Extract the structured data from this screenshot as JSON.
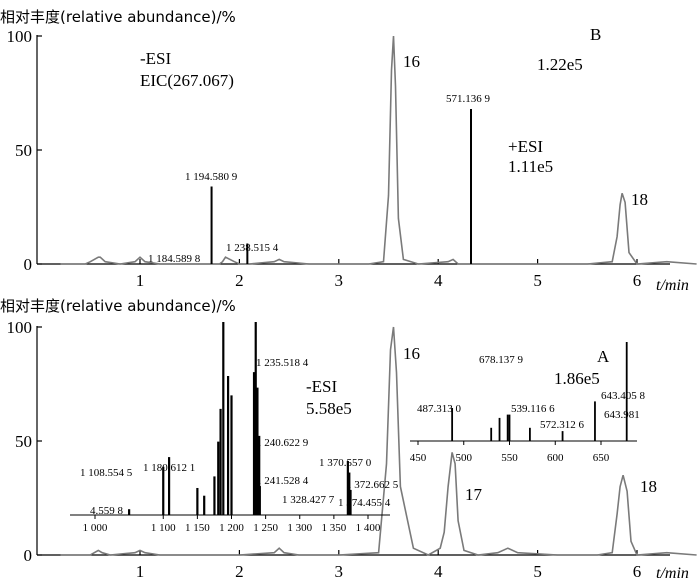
{
  "chart_data": [
    {
      "type": "line",
      "panel": "B",
      "panel_label": "B",
      "ylabel": "相对丰度(relative abundance)/%",
      "xlabel": "t/min",
      "ylim": [
        0,
        100
      ],
      "xlim": [
        0.2,
        6.6
      ],
      "yticks": [
        "0",
        "50",
        "100"
      ],
      "xticks": [
        "1",
        "2",
        "3",
        "4",
        "5",
        "6"
      ],
      "annotations": {
        "mode_a": "-ESI",
        "mode_b": "EIC(267.067)",
        "intensity": "1.22e5"
      },
      "series": [
        {
          "x": [
            0.2,
            0.45,
            0.5,
            0.58,
            0.6,
            0.65,
            0.8,
            0.95,
            1.0,
            1.05,
            1.2,
            1.5,
            1.8,
            1.83,
            1.86,
            1.95,
            2.0,
            2.1,
            2.35,
            2.4,
            2.45,
            2.7,
            2.8,
            3.0,
            3.3,
            3.45,
            3.5,
            3.53,
            3.55,
            3.57,
            3.6,
            3.65,
            3.8,
            4.1,
            4.15,
            4.2,
            4.5,
            5.0,
            5.5,
            5.75,
            5.8,
            5.83,
            5.85,
            5.88,
            5.92,
            6.0,
            6.3,
            6.6
          ],
          "y": [
            0,
            0,
            1,
            3,
            3,
            1,
            0,
            1,
            3,
            1,
            0,
            0,
            0,
            1,
            3,
            1,
            0,
            0,
            1,
            2,
            1,
            0,
            0,
            0,
            0,
            1,
            30,
            85,
            100,
            78,
            20,
            2,
            0,
            1,
            2,
            0,
            0,
            0,
            0,
            1,
            12,
            26,
            31,
            27,
            5,
            0,
            1,
            0
          ]
        }
      ],
      "peaks": [
        {
          "x": 3.55,
          "label": "16"
        },
        {
          "x": 5.85,
          "label": "18"
        }
      ]
    },
    {
      "type": "bar",
      "panel": "inset-B",
      "annotations": {
        "mode": "+ESI",
        "intensity": "1.11e5"
      },
      "bars": [
        {
          "x_min": 1.72,
          "y": 34,
          "label": "1 194.580 9"
        },
        {
          "x_min": 2.08,
          "y": 9,
          "label": "1 238.515 4"
        },
        {
          "x_min": 4.33,
          "y": 68,
          "label": "571.136 9"
        }
      ],
      "labels_extra": [
        "1 184.589 8"
      ]
    },
    {
      "type": "line",
      "panel": "A",
      "panel_label": "A",
      "ylabel": "相对丰度(relative abundance)/%",
      "xlabel": "t/min",
      "ylim": [
        0,
        100
      ],
      "xlim": [
        0.2,
        6.6
      ],
      "yticks": [
        "0",
        "50",
        "100"
      ],
      "xticks": [
        "1",
        "2",
        "3",
        "4",
        "5",
        "6"
      ],
      "annotations": {
        "mode_a": "-ESI",
        "mode_b": "5.58e5",
        "intensity": "1.86e5"
      },
      "series": [
        {
          "x": [
            0.2,
            0.5,
            0.58,
            0.62,
            0.7,
            0.95,
            1.0,
            1.05,
            1.2,
            1.5,
            2.0,
            2.35,
            2.4,
            2.45,
            2.6,
            3.0,
            3.4,
            3.48,
            3.52,
            3.55,
            3.58,
            3.62,
            3.75,
            3.9,
            4.02,
            4.06,
            4.1,
            4.14,
            4.17,
            4.2,
            4.26,
            4.4,
            4.6,
            4.7,
            4.8,
            5.2,
            5.6,
            5.75,
            5.8,
            5.83,
            5.86,
            5.9,
            5.94,
            6.0,
            6.3,
            6.6
          ],
          "y": [
            0,
            0,
            2,
            1,
            0,
            1,
            2,
            1,
            0,
            0,
            0,
            1,
            3,
            1,
            0,
            0,
            1,
            40,
            90,
            100,
            80,
            30,
            3,
            0,
            3,
            10,
            30,
            45,
            40,
            15,
            2,
            0,
            1,
            3,
            1,
            0,
            0,
            1,
            18,
            30,
            35,
            28,
            6,
            0,
            1,
            0
          ]
        }
      ],
      "peaks": [
        {
          "x": 3.55,
          "label": "16"
        },
        {
          "x": 4.17,
          "label": "17"
        },
        {
          "x": 5.86,
          "label": "18"
        }
      ]
    },
    {
      "type": "bar",
      "panel": "inset-A-left",
      "xlabel": "",
      "xticks": [
        "1 000",
        "1 100",
        "1 150",
        "1 200",
        "1 250",
        "1 300",
        "1 350",
        "1 400"
      ],
      "labels": [
        "4.559 8",
        "1 108.554 5",
        "1 180.612 1",
        "1 235.518 4",
        "1 240.622 9",
        "1 241.528 4",
        "1 328.427 7",
        "1 370.557 0",
        "1 372.662 5",
        "1 374.455 4"
      ],
      "bars": [
        {
          "x": 1050,
          "y": 3
        },
        {
          "x": 1100,
          "y": 25
        },
        {
          "x": 1108.55,
          "y": 30
        },
        {
          "x": 1150,
          "y": 14
        },
        {
          "x": 1160,
          "y": 10
        },
        {
          "x": 1175,
          "y": 20
        },
        {
          "x": 1180.6,
          "y": 38
        },
        {
          "x": 1184,
          "y": 55
        },
        {
          "x": 1188,
          "y": 100
        },
        {
          "x": 1195,
          "y": 72
        },
        {
          "x": 1200,
          "y": 62
        },
        {
          "x": 1233,
          "y": 74
        },
        {
          "x": 1235.5,
          "y": 100
        },
        {
          "x": 1238,
          "y": 66
        },
        {
          "x": 1240.6,
          "y": 41
        },
        {
          "x": 1241.5,
          "y": 15
        },
        {
          "x": 1370.5,
          "y": 28
        },
        {
          "x": 1372.6,
          "y": 22
        },
        {
          "x": 1374.4,
          "y": 13
        }
      ]
    },
    {
      "type": "bar",
      "panel": "inset-A-right",
      "xticks": [
        "450",
        "500",
        "550",
        "600",
        "650"
      ],
      "labels": [
        "678.137 9",
        "487.313 0",
        "539.116 6",
        "572.312 6",
        "643.405 8",
        "643.981"
      ],
      "bars": [
        {
          "x": 487.3,
          "y": 10
        },
        {
          "x": 530,
          "y": 4
        },
        {
          "x": 539.1,
          "y": 7
        },
        {
          "x": 548,
          "y": 8
        },
        {
          "x": 550,
          "y": 8
        },
        {
          "x": 572.3,
          "y": 4
        },
        {
          "x": 608,
          "y": 3
        },
        {
          "x": 643.4,
          "y": 12
        },
        {
          "x": 678.1,
          "y": 30
        }
      ]
    }
  ]
}
